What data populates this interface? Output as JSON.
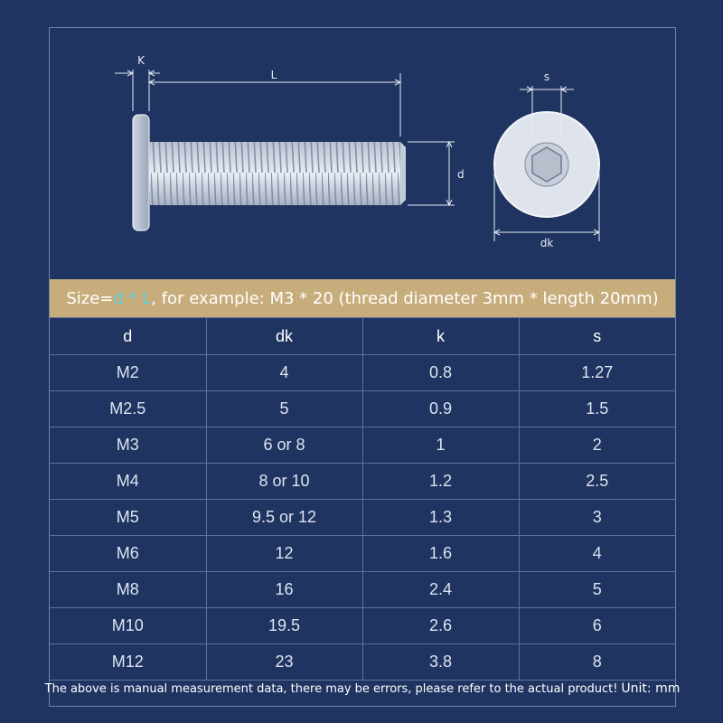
{
  "diagram": {
    "labels": {
      "k": "K",
      "l": "L",
      "d": "d",
      "s": "s",
      "dk": "dk"
    }
  },
  "banner": {
    "prefix": "Size=",
    "highlight": "d * L",
    "suffix": ", for example: M3 * 20 (thread diameter 3mm * length 20mm)"
  },
  "table": {
    "headers": [
      "d",
      "dk",
      "k",
      "s"
    ],
    "rows": [
      [
        "M2",
        "4",
        "0.8",
        "1.27"
      ],
      [
        "M2.5",
        "5",
        "0.9",
        "1.5"
      ],
      [
        "M3",
        "6 or 8",
        "1",
        "2"
      ],
      [
        "M4",
        "8 or 10",
        "1.2",
        "2.5"
      ],
      [
        "M5",
        "9.5 or 12",
        "1.3",
        "3"
      ],
      [
        "M6",
        "12",
        "1.6",
        "4"
      ],
      [
        "M8",
        "16",
        "2.4",
        "5"
      ],
      [
        "M10",
        "19.5",
        "2.6",
        "6"
      ],
      [
        "M12",
        "23",
        "3.8",
        "8"
      ]
    ]
  },
  "footer": {
    "note": "The above is manual measurement data, there may be errors, please refer to the actual product!",
    "unit": "Unit: mm"
  },
  "colors": {
    "background": "#1f3461",
    "banner": "#c8ad7c",
    "highlight": "#5fd1e0"
  }
}
